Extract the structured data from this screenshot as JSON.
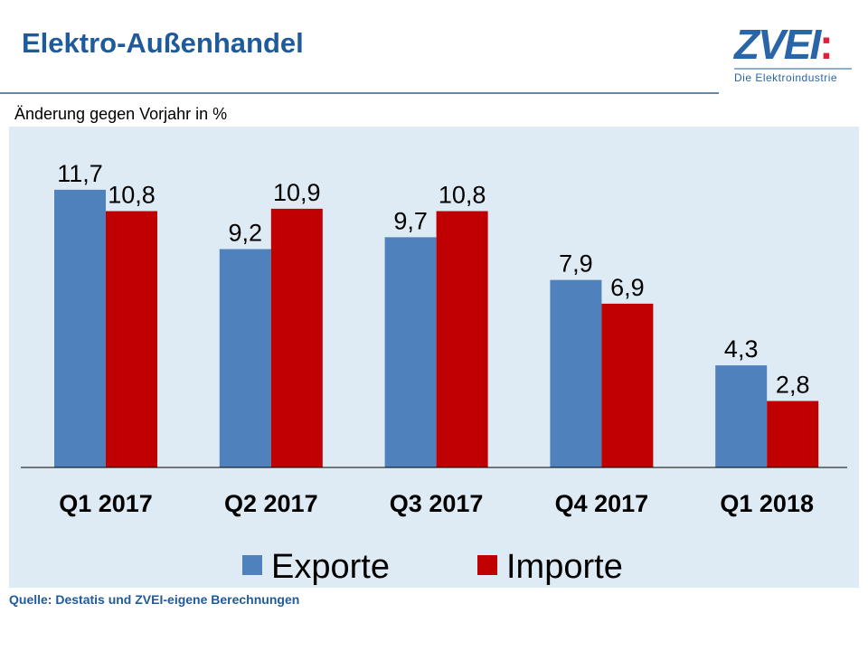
{
  "header": {
    "title": "Elektro-Außenhandel",
    "logo_text": "ZVEI:",
    "logo_subtitle": "Die Elektroindustrie"
  },
  "subtitle": "Änderung gegen Vorjahr in %",
  "source": "Quelle: Destatis und ZVEI-eigene Berechnungen",
  "chart_data": {
    "type": "bar",
    "categories": [
      "Q1 2017",
      "Q2 2017",
      "Q3 2017",
      "Q4 2017",
      "Q1 2018"
    ],
    "series": [
      {
        "name": "Exporte",
        "color": "#4f81bd",
        "values": [
          11.7,
          9.2,
          9.7,
          7.9,
          4.3
        ],
        "labels": [
          "11,7",
          "9,2",
          "9,7",
          "7,9",
          "4,3"
        ]
      },
      {
        "name": "Importe",
        "color": "#c00000",
        "values": [
          10.8,
          10.9,
          10.8,
          6.9,
          2.8
        ],
        "labels": [
          "10,8",
          "10,9",
          "10,8",
          "6,9",
          "2,8"
        ]
      }
    ],
    "ylim": [
      0,
      12
    ],
    "grid": false,
    "legend": "bottom",
    "background": "#dfebf4"
  }
}
